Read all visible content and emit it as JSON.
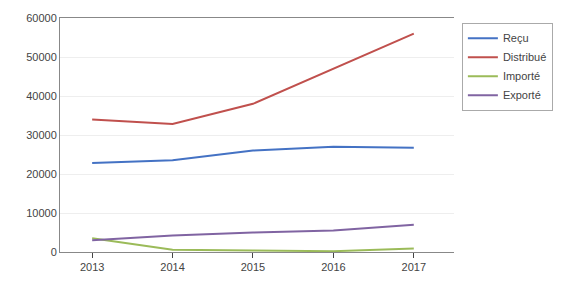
{
  "chart_data": {
    "type": "line",
    "x": [
      2013,
      2014,
      2015,
      2016,
      2017
    ],
    "series": [
      {
        "name": "Reçu",
        "color": "#4472C4",
        "values": [
          22800,
          23500,
          26000,
          27000,
          26700
        ]
      },
      {
        "name": "Distribué",
        "color": "#C0504D",
        "values": [
          34000,
          32800,
          38000,
          47000,
          56000
        ]
      },
      {
        "name": "Importé",
        "color": "#9BBB59",
        "values": [
          3500,
          600,
          400,
          200,
          900
        ]
      },
      {
        "name": "Exporté",
        "color": "#8064A2",
        "values": [
          3000,
          4200,
          5000,
          5500,
          7000
        ]
      }
    ],
    "xlim": [
      2012.6,
      2017.5
    ],
    "xticks": [
      2013,
      2014,
      2015,
      2016,
      2017
    ],
    "ylim": [
      0,
      60000
    ],
    "yticks": [
      0,
      10000,
      20000,
      30000,
      40000,
      50000,
      60000
    ],
    "grid": true,
    "legend": "right"
  }
}
